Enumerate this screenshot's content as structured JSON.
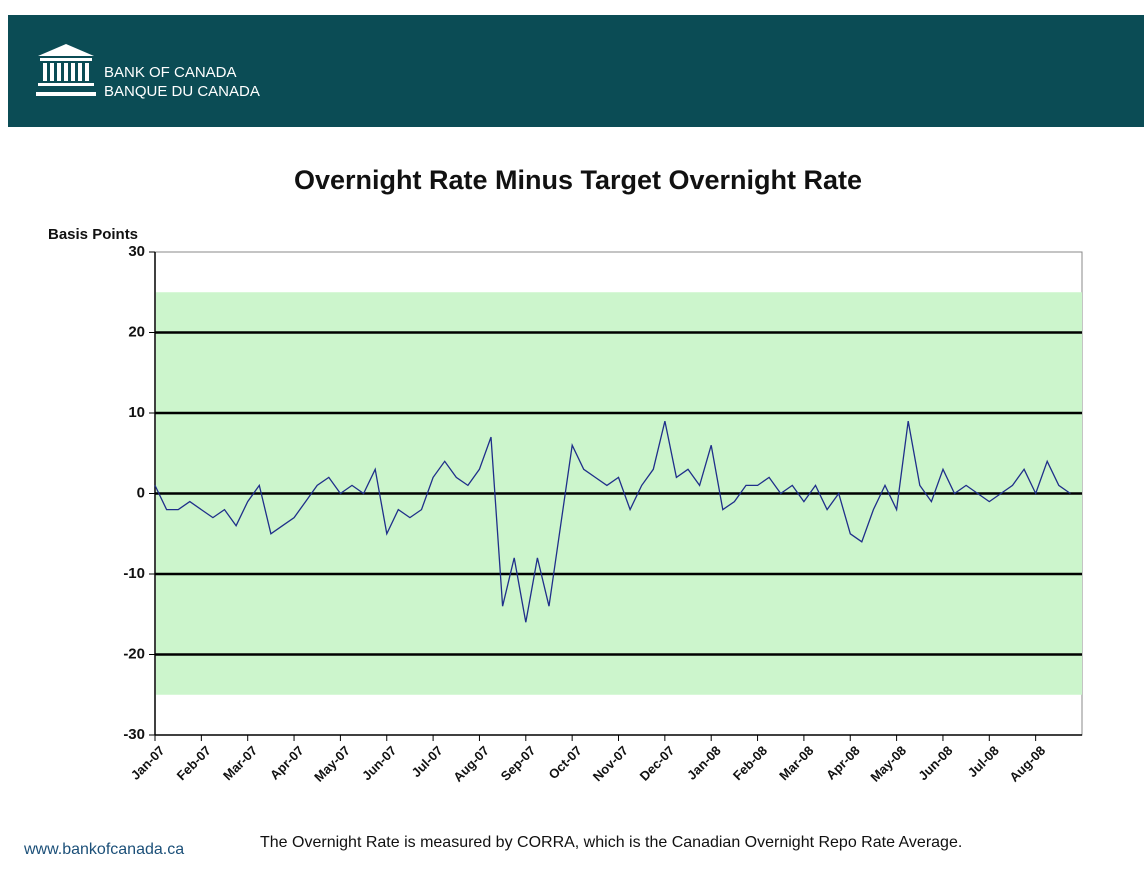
{
  "header": {
    "name_en": "BANK OF CANADA",
    "name_fr": "BANQUE DU CANADA"
  },
  "footer": {
    "url": "www.bankofcanada.ca",
    "note": "The Overnight Rate is measured by CORRA, which is the Canadian Overnight Repo Rate Average."
  },
  "chart_data": {
    "type": "line",
    "title": "Overnight Rate Minus Target Overnight Rate",
    "y_label": "Basis Points",
    "categories": [
      "Jan-07",
      null,
      null,
      null,
      "Feb-07",
      null,
      null,
      null,
      "Mar-07",
      null,
      null,
      null,
      "Apr-07",
      null,
      null,
      null,
      "May-07",
      null,
      null,
      null,
      "Jun-07",
      null,
      null,
      null,
      "Jul-07",
      null,
      null,
      null,
      "Aug-07",
      null,
      null,
      null,
      "Sep-07",
      null,
      null,
      null,
      "Oct-07",
      null,
      null,
      null,
      "Nov-07",
      null,
      null,
      null,
      "Dec-07",
      null,
      null,
      null,
      "Jan-08",
      null,
      null,
      null,
      "Feb-08",
      null,
      null,
      null,
      "Mar-08",
      null,
      null,
      null,
      "Apr-08",
      null,
      null,
      null,
      "May-08",
      null,
      null,
      null,
      "Jun-08",
      null,
      null,
      null,
      "Jul-08",
      null,
      null,
      null,
      "Aug-08",
      null,
      null,
      null
    ],
    "values": [
      1,
      -2,
      -2,
      -1,
      -2,
      -3,
      -2,
      -4,
      -1,
      1,
      -5,
      -4,
      -3,
      -1,
      1,
      2,
      0,
      1,
      0,
      3,
      -5,
      -2,
      -3,
      -2,
      2,
      4,
      2,
      1,
      3,
      7,
      -14,
      -8,
      -16,
      -8,
      -14,
      -4,
      6,
      3,
      2,
      1,
      2,
      -2,
      1,
      3,
      9,
      2,
      3,
      1,
      6,
      -2,
      -1,
      1,
      1,
      2,
      0,
      1,
      -1,
      1,
      -2,
      0,
      -5,
      -6,
      -2,
      1,
      -2,
      9,
      1,
      -1,
      3,
      0,
      1,
      0,
      -1,
      0,
      1,
      3,
      0,
      4,
      1,
      0
    ],
    "color": "#1f2f8a",
    "shaded_range": [
      -25,
      25
    ],
    "shade_color": "#ccf5cc",
    "ylim": [
      -30,
      30
    ],
    "yticks": [
      -30,
      -20,
      -10,
      0,
      10,
      20,
      30
    ],
    "grid_lines": [
      -20,
      -10,
      0,
      10,
      20
    ],
    "grid": true
  }
}
